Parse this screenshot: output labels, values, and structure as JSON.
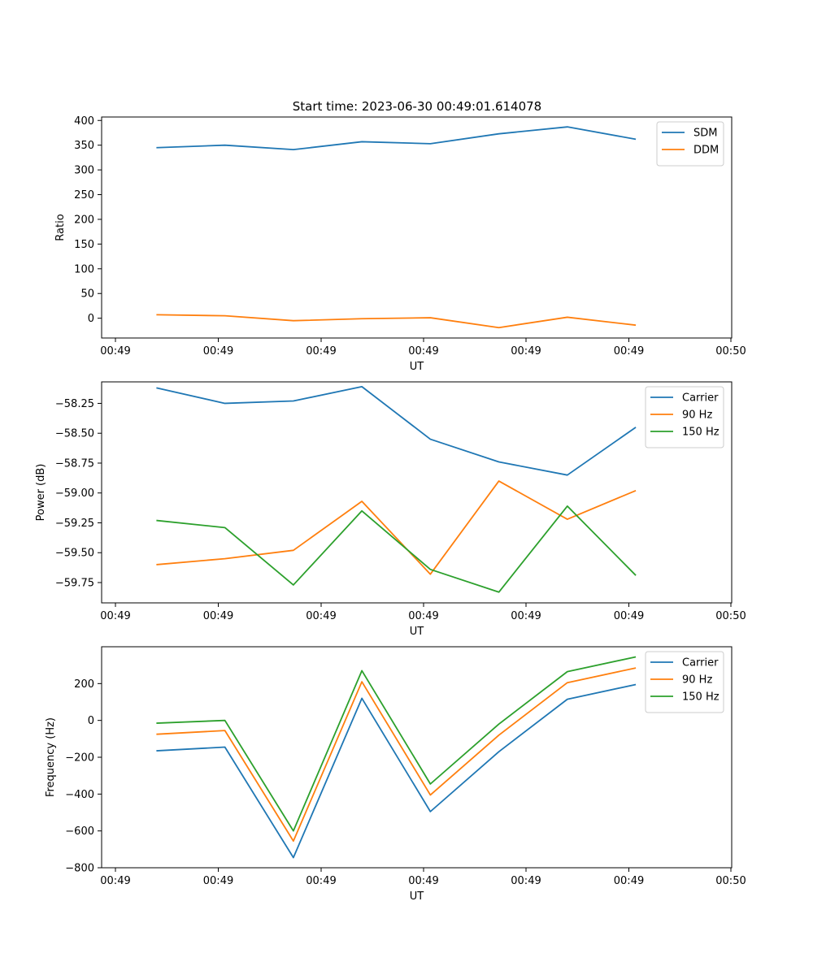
{
  "figure": {
    "title": "Start time: 2023-06-30 00:49:01.614078"
  },
  "colors": {
    "series_blue": "#1f77b4",
    "series_orange": "#ff7f0e",
    "series_green": "#2ca02c"
  },
  "chart_data": [
    {
      "type": "line",
      "title": "Start time: 2023-06-30 00:49:01.614078",
      "xlabel": "UT",
      "ylabel": "Ratio",
      "x_tick_labels": [
        "00:49",
        "00:49",
        "00:49",
        "00:49",
        "00:49",
        "00:49",
        "00:50"
      ],
      "x": [
        1,
        2,
        3,
        4,
        5,
        6,
        7,
        8
      ],
      "xlim": [
        0.2,
        9.4
      ],
      "ylim": [
        -40,
        407
      ],
      "y_ticks": [
        0,
        50,
        100,
        150,
        200,
        250,
        300,
        350,
        400
      ],
      "y_tick_labels": [
        "0",
        "50",
        "100",
        "150",
        "200",
        "250",
        "300",
        "350",
        "400"
      ],
      "legend_position": "upper right",
      "series": [
        {
          "name": "SDM",
          "color": "#1f77b4",
          "values": [
            345,
            350,
            341,
            357,
            353,
            373,
            387,
            362
          ]
        },
        {
          "name": "DDM",
          "color": "#ff7f0e",
          "values": [
            7,
            5,
            -5,
            -1,
            1,
            -19,
            2,
            -14
          ]
        }
      ]
    },
    {
      "type": "line",
      "title": "",
      "xlabel": "UT",
      "ylabel": "Power (dB)",
      "x_tick_labels": [
        "00:49",
        "00:49",
        "00:49",
        "00:49",
        "00:49",
        "00:49",
        "00:50"
      ],
      "x": [
        1,
        2,
        3,
        4,
        5,
        6,
        7,
        8
      ],
      "xlim": [
        0.2,
        9.4
      ],
      "ylim": [
        -59.92,
        -58.07
      ],
      "y_ticks": [
        -59.75,
        -59.5,
        -59.25,
        -59.0,
        -58.75,
        -58.5,
        -58.25
      ],
      "y_tick_labels": [
        "−59.75",
        "−59.50",
        "−59.25",
        "−59.00",
        "−58.75",
        "−58.50",
        "−58.25"
      ],
      "legend_position": "upper right",
      "series": [
        {
          "name": "Carrier",
          "color": "#1f77b4",
          "values": [
            -58.12,
            -58.25,
            -58.23,
            -58.11,
            -58.55,
            -58.74,
            -58.85,
            -58.45
          ]
        },
        {
          "name": "90 Hz",
          "color": "#ff7f0e",
          "values": [
            -59.6,
            -59.55,
            -59.48,
            -59.07,
            -59.68,
            -58.9,
            -59.22,
            -58.98
          ]
        },
        {
          "name": "150 Hz",
          "color": "#2ca02c",
          "values": [
            -59.23,
            -59.29,
            -59.77,
            -59.15,
            -59.64,
            -59.83,
            -59.11,
            -59.69
          ]
        }
      ]
    },
    {
      "type": "line",
      "title": "",
      "xlabel": "UT",
      "ylabel": "Frequency (Hz)",
      "x_tick_labels": [
        "00:49",
        "00:49",
        "00:49",
        "00:49",
        "00:49",
        "00:49",
        "00:50"
      ],
      "x": [
        1,
        2,
        3,
        4,
        5,
        6,
        7,
        8
      ],
      "xlim": [
        0.2,
        9.4
      ],
      "ylim": [
        -800,
        400
      ],
      "y_ticks": [
        -800,
        -600,
        -400,
        -200,
        0,
        200
      ],
      "y_tick_labels": [
        "−800",
        "−600",
        "−400",
        "−200",
        "0",
        "200"
      ],
      "legend_position": "upper right",
      "series": [
        {
          "name": "Carrier",
          "color": "#1f77b4",
          "values": [
            -165,
            -145,
            -745,
            120,
            -495,
            -170,
            115,
            195
          ]
        },
        {
          "name": "90 Hz",
          "color": "#ff7f0e",
          "values": [
            -75,
            -55,
            -655,
            210,
            -405,
            -80,
            205,
            285
          ]
        },
        {
          "name": "150 Hz",
          "color": "#2ca02c",
          "values": [
            -15,
            0,
            -600,
            270,
            -345,
            -20,
            265,
            345
          ]
        }
      ]
    }
  ]
}
